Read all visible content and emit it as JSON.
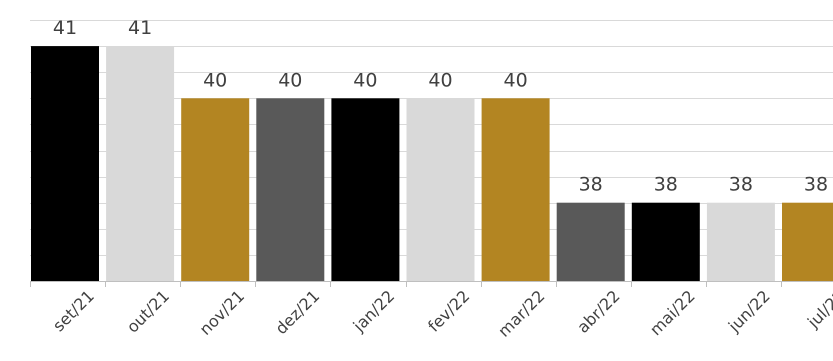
{
  "chart_data": {
    "type": "bar",
    "categories": [
      "set/21",
      "out/21",
      "nov/21",
      "dez/21",
      "jan/22",
      "fev/22",
      "mar/22",
      "abr/22",
      "mai/22",
      "jun/22",
      "jul/22"
    ],
    "values": [
      41,
      41,
      40,
      40,
      40,
      40,
      40,
      38,
      38,
      38,
      38
    ],
    "data_labels": [
      "41",
      "41",
      "40",
      "40",
      "40",
      "40",
      "40",
      "38",
      "38",
      "38",
      "38"
    ],
    "bar_colors": [
      "#000000",
      "#d9d9d9",
      "#b38522",
      "#595959",
      "#000000",
      "#d9d9d9",
      "#b38522",
      "#595959",
      "#000000",
      "#d9d9d9",
      "#b38522"
    ],
    "title": "",
    "xlabel": "",
    "ylabel": "",
    "ylim": [
      36.5,
      41.5
    ],
    "grid": true,
    "legend": "none"
  }
}
